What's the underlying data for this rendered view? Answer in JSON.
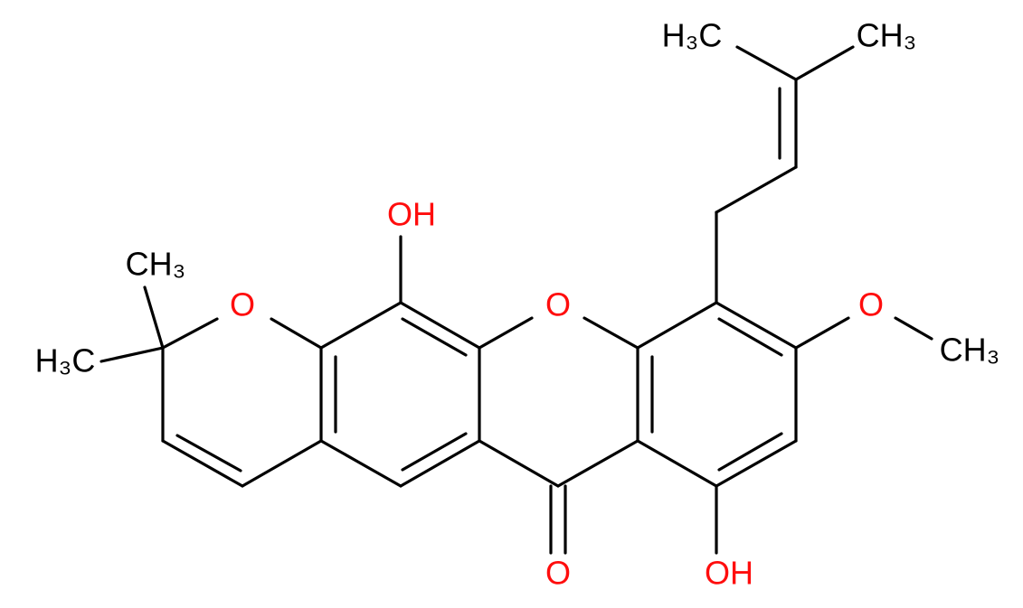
{
  "atoms": [
    {
      "label": "H₃C"
    },
    {
      "label": "CH₃"
    },
    {
      "label": "OH"
    },
    {
      "label": "CH₃"
    },
    {
      "label": "O"
    },
    {
      "label": "O"
    },
    {
      "label": "H₃C"
    },
    {
      "label": "O"
    },
    {
      "label": "CH₃"
    },
    {
      "label": "O"
    },
    {
      "label": "OH"
    }
  ]
}
